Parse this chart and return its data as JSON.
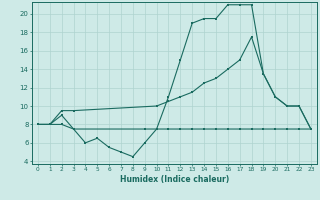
{
  "bg_color": "#ceeae7",
  "grid_color": "#afd4d0",
  "line_color": "#1a6b60",
  "xlabel": "Humidex (Indice chaleur)",
  "line1_x": [
    0,
    1,
    2,
    3,
    4,
    5,
    6,
    7,
    8,
    9,
    10,
    11,
    12,
    13,
    14,
    15,
    16,
    17,
    18,
    19,
    20,
    21,
    22,
    23
  ],
  "line1_y": [
    8,
    8,
    9,
    7.5,
    6,
    6.5,
    5.5,
    5,
    4.5,
    6,
    7.5,
    11,
    15,
    19,
    19.5,
    19.5,
    21,
    21,
    21,
    13.5,
    11,
    10,
    10,
    7.5
  ],
  "line2_x": [
    0,
    1,
    2,
    3,
    10,
    11,
    12,
    13,
    14,
    15,
    16,
    17,
    18,
    19,
    20,
    21,
    22,
    23
  ],
  "line2_y": [
    8,
    8,
    9.5,
    9.5,
    10,
    10.5,
    11,
    11.5,
    12.5,
    13,
    14,
    15,
    17.5,
    13.5,
    11,
    10,
    10,
    7.5
  ],
  "line3_x": [
    0,
    1,
    2,
    3,
    9,
    10,
    11,
    12,
    13,
    14,
    15,
    16,
    17,
    18,
    19,
    20,
    21,
    22,
    23
  ],
  "line3_y": [
    8,
    8,
    8,
    7.5,
    7.5,
    7.5,
    7.5,
    7.5,
    7.5,
    7.5,
    7.5,
    7.5,
    7.5,
    7.5,
    7.5,
    7.5,
    7.5,
    7.5,
    7.5
  ],
  "ylim": [
    4,
    21
  ],
  "xlim": [
    -0.5,
    23.5
  ],
  "yticks": [
    4,
    6,
    8,
    10,
    12,
    14,
    16,
    18,
    20
  ],
  "xticks": [
    0,
    1,
    2,
    3,
    4,
    5,
    6,
    7,
    8,
    9,
    10,
    11,
    12,
    13,
    14,
    15,
    16,
    17,
    18,
    19,
    20,
    21,
    22,
    23
  ]
}
